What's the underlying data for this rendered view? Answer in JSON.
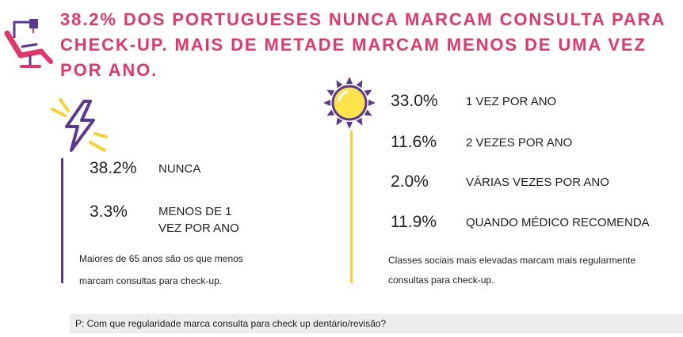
{
  "header": {
    "icon": "dentist-chair-icon",
    "title_lines": [
      "38.2% DOS PORTUGUESES NUNCA MARCAM CONSULTA PARA",
      "CHECK-UP. MAIS DE METADE MARCAM MENOS DE UMA VEZ",
      "POR ANO."
    ]
  },
  "left_panel": {
    "icon": "lightning-icon",
    "stats": [
      {
        "value": "38.2%",
        "label_lines": [
          "NUNCA"
        ]
      },
      {
        "value": "3.3%",
        "label_lines": [
          "MENOS DE 1",
          "VEZ POR ANO"
        ]
      }
    ],
    "note_lines": [
      "Maiores de 65 anos são os que menos",
      "marcam consultas para check-up."
    ]
  },
  "right_panel": {
    "icon": "sun-icon",
    "stats": [
      {
        "value": "33.0%",
        "label_lines": [
          "1 VEZ POR ANO"
        ]
      },
      {
        "value": "11.6%",
        "label_lines": [
          "2 VEZES POR ANO"
        ]
      },
      {
        "value": "2.0%",
        "label_lines": [
          "VÁRIAS VEZES POR ANO"
        ]
      },
      {
        "value": "11.9%",
        "label_lines": [
          "QUANDO MÉDICO RECOMENDA"
        ]
      }
    ],
    "note_lines": [
      "Classes sociais mais elevadas marcam mais regularmente",
      "consultas para check-up."
    ]
  },
  "footer": {
    "question": "P: Com que regularidade marca consulta para check up dentário/revisão?"
  },
  "colors": {
    "accent": "#E2376B",
    "purple": "#5B3A8E",
    "yellow": "#F6D32F",
    "text": "#1F1F1F",
    "footer_bg": "#EDEDED"
  }
}
